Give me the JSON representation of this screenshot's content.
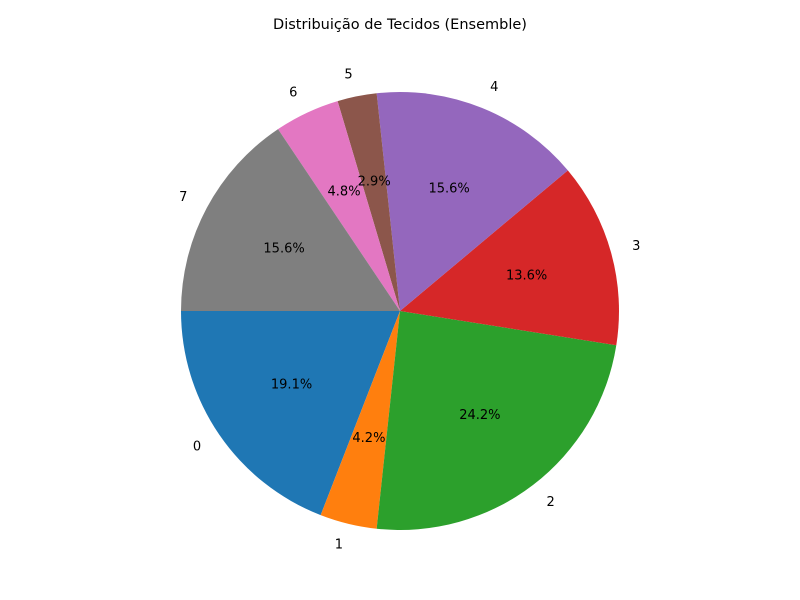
{
  "chart_data": {
    "type": "pie",
    "title": "Distribuição de Tecidos (Ensemble)",
    "start_angle_deg": 180,
    "direction": "counterclockwise",
    "slices": [
      {
        "label": "0",
        "value": 19.1,
        "pct_label": "19.1%",
        "color": "#1f77b4"
      },
      {
        "label": "1",
        "value": 4.2,
        "pct_label": "4.2%",
        "color": "#ff7f0e"
      },
      {
        "label": "2",
        "value": 24.2,
        "pct_label": "24.2%",
        "color": "#2ca02c"
      },
      {
        "label": "3",
        "value": 13.6,
        "pct_label": "13.6%",
        "color": "#d62728"
      },
      {
        "label": "4",
        "value": 15.6,
        "pct_label": "15.6%",
        "color": "#9467bd"
      },
      {
        "label": "5",
        "value": 2.9,
        "pct_label": "2.9%",
        "color": "#8c564b"
      },
      {
        "label": "6",
        "value": 4.8,
        "pct_label": "4.8%",
        "color": "#e377c2"
      },
      {
        "label": "7",
        "value": 15.6,
        "pct_label": "15.6%",
        "color": "#7f7f7f"
      }
    ]
  }
}
